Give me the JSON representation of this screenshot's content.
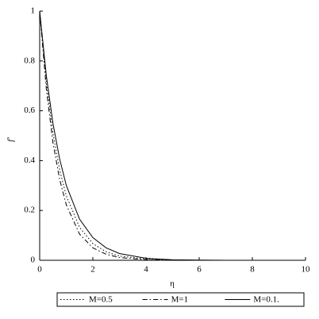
{
  "chart_data": {
    "type": "line",
    "xlabel": "η",
    "ylabel": "f'",
    "x": [
      0,
      0.25,
      0.5,
      0.75,
      1,
      1.5,
      2,
      2.5,
      3,
      4,
      5,
      6,
      7,
      8,
      9,
      10
    ],
    "series": [
      {
        "name": "M=0.5",
        "color": "#000000",
        "dash": "dotted",
        "values": [
          1,
          0.714,
          0.509,
          0.363,
          0.259,
          0.132,
          0.067,
          0.034,
          0.017,
          0.005,
          0.001,
          0,
          0,
          0,
          0,
          0
        ]
      },
      {
        "name": "M=1",
        "color": "#000000",
        "dash": "dashdot",
        "values": [
          1,
          0.687,
          0.472,
          0.325,
          0.223,
          0.105,
          0.05,
          0.024,
          0.011,
          0.002,
          0.001,
          0,
          0,
          0,
          0,
          0
        ]
      },
      {
        "name": "M=0.1.",
        "color": "#000000",
        "dash": "solid",
        "values": [
          1,
          0.741,
          0.549,
          0.407,
          0.301,
          0.165,
          0.091,
          0.05,
          0.027,
          0.008,
          0.002,
          0.001,
          0,
          0,
          0,
          0
        ]
      }
    ],
    "xlim": [
      0,
      10
    ],
    "xticks": [
      0,
      2,
      4,
      6,
      8,
      10
    ],
    "ylim": [
      0,
      1
    ],
    "yticks": [
      0,
      0.2,
      0.4,
      0.6,
      0.8,
      1
    ],
    "grid": false,
    "legend": "bottom"
  }
}
